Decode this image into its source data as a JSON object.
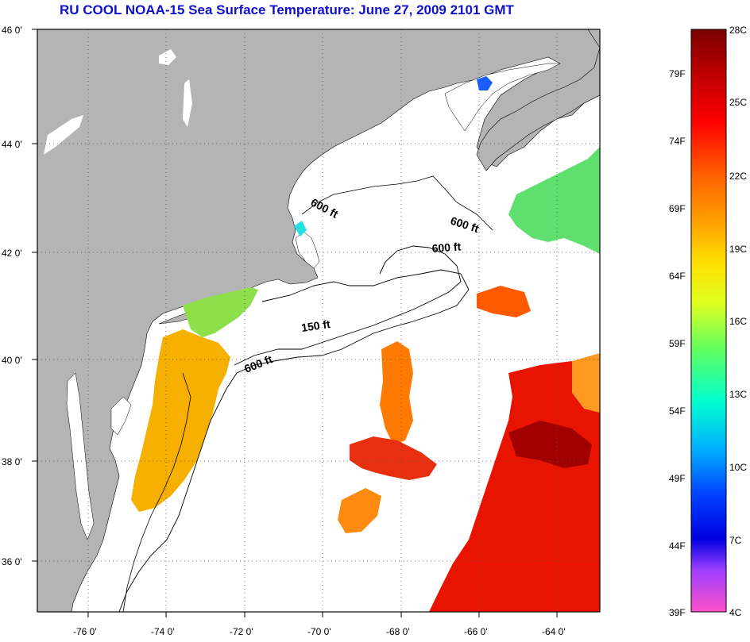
{
  "title": "RU COOL  NOAA-15  Sea Surface Temperature:  June 27, 2009 2101 GMT",
  "map": {
    "lon_range": [
      -77.0,
      -62.8
    ],
    "lat_range": [
      35.0,
      46.0
    ],
    "lat_ticks": [
      "36 0'",
      "38 0'",
      "40 0'",
      "42 0'",
      "44 0'",
      "46 0'"
    ],
    "lon_ticks": [
      "-76 0'",
      "-74 0'",
      "-72 0'",
      "-70 0'",
      "-68 0'",
      "-66 0'",
      "-64 0'"
    ],
    "gridlines": "dotted",
    "land_color": "#b4b4b4",
    "water_nodata_color": "#ffffff"
  },
  "contour_labels": [
    {
      "text": "600 ft",
      "lon": -69.6,
      "lat": 42.9
    },
    {
      "text": "600 ft",
      "lon": -66.6,
      "lat": 42.6
    },
    {
      "text": "600 ft",
      "lon": -67.4,
      "lat": 42.1
    },
    {
      "text": "150 ft",
      "lon": -70.4,
      "lat": 40.6
    },
    {
      "text": "600 ft",
      "lon": -71.4,
      "lat": 39.8
    }
  ],
  "colorbar": {
    "fahrenheit_labels": [
      "79F",
      "74F",
      "69F",
      "64F",
      "59F",
      "54F",
      "49F",
      "44F",
      "39F"
    ],
    "celsius_labels": [
      "28C",
      "25C",
      "22C",
      "19C",
      "16C",
      "13C",
      "10C",
      "7C",
      "4C"
    ],
    "colors_top_to_bottom": [
      "#8b0000",
      "#ff0000",
      "#ff8000",
      "#ffff00",
      "#40ff40",
      "#00ffff",
      "#0080ff",
      "#0000ff",
      "#8000ff",
      "#ff00ff",
      "#ff66cc"
    ]
  },
  "sst_patches": [
    {
      "name": "nj-shelf",
      "color": "#f5b400"
    },
    {
      "name": "long-island-sound",
      "color": "#88e040"
    },
    {
      "name": "gulf-stream",
      "color": "#e81400"
    },
    {
      "name": "slope-warm",
      "color": "#ff6a00"
    },
    {
      "name": "scotian-shelf",
      "color": "#50e060"
    },
    {
      "name": "bay-of-fundy",
      "color": "#1a60ff"
    }
  ]
}
